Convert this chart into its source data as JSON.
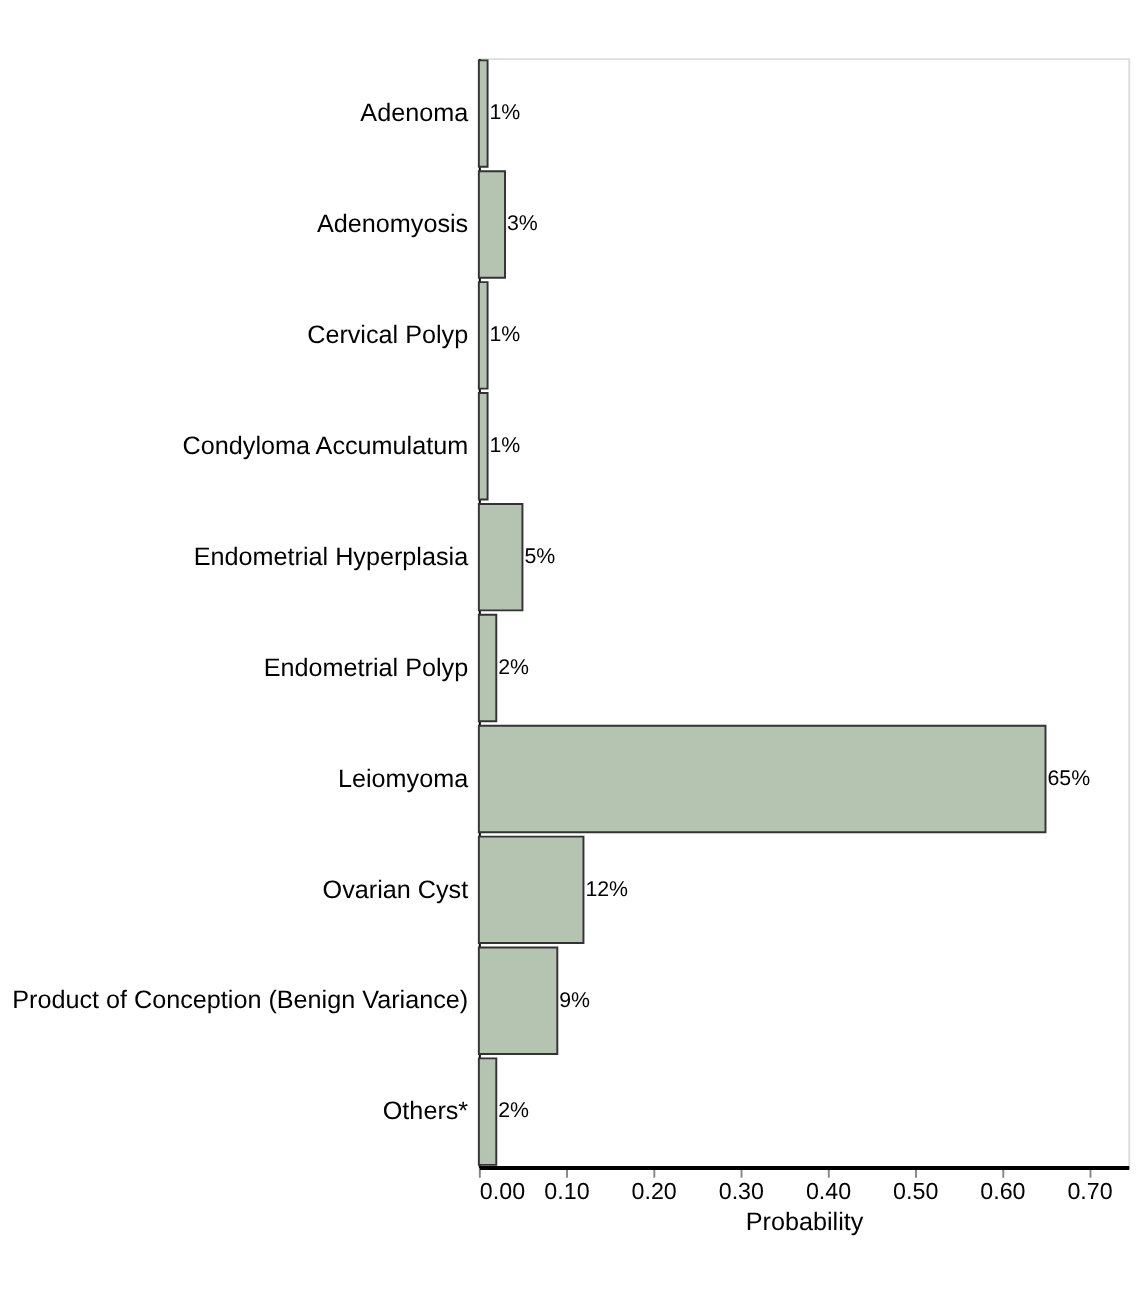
{
  "chart_data": {
    "type": "bar",
    "orientation": "horizontal",
    "xlabel": "Probability",
    "categories": [
      "Adenoma",
      "Adenomyosis",
      "Cervical Polyp",
      "Condyloma Accumulatum",
      "Endometrial Hyperplasia",
      "Endometrial Polyp",
      "Leiomyoma",
      "Ovarian Cyst",
      "Product of Conception (Benign Variance)",
      "Others*"
    ],
    "values": [
      0.01,
      0.03,
      0.01,
      0.01,
      0.05,
      0.02,
      0.65,
      0.12,
      0.09,
      0.02
    ],
    "value_labels": [
      "1%",
      "3%",
      "1%",
      "1%",
      "5%",
      "2%",
      "65%",
      "12%",
      "9%",
      "2%"
    ],
    "color": "#b5c4b1",
    "xlim": [
      0,
      0.745
    ],
    "xticks": [
      {
        "value": 0,
        "label": "0.00"
      },
      {
        "value": 0.1,
        "label": "0.10"
      },
      {
        "value": 0.2,
        "label": "0.20"
      },
      {
        "value": 0.3,
        "label": "0.30"
      },
      {
        "value": 0.4,
        "label": "0.40"
      },
      {
        "value": 0.5,
        "label": "0.50"
      },
      {
        "value": 0.6,
        "label": "0.60"
      },
      {
        "value": 0.7,
        "label": "0.70"
      }
    ],
    "grid": false
  }
}
